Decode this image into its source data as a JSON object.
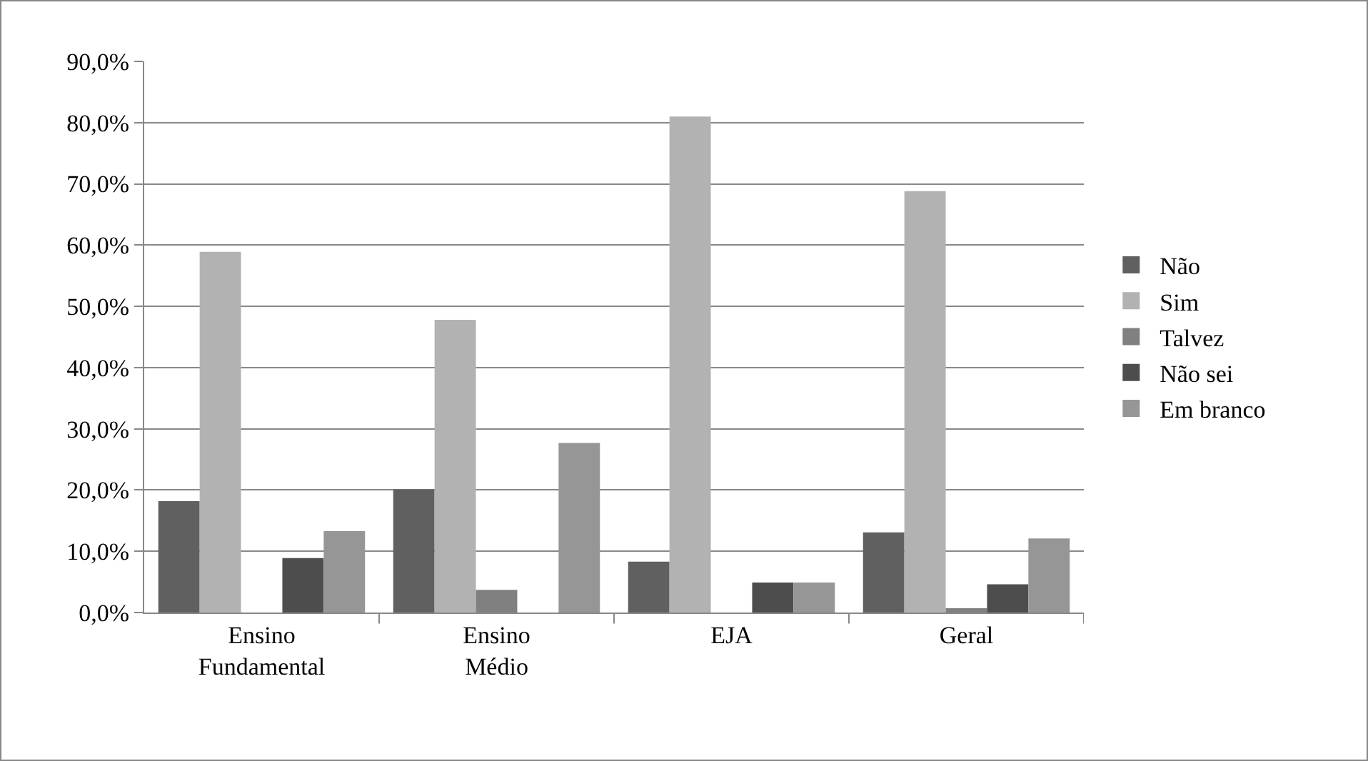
{
  "chart_data": {
    "type": "bar",
    "categories": [
      "Ensino Fundamental",
      "Ensino Médio",
      "EJA",
      "Geral"
    ],
    "series": [
      {
        "name": "Não",
        "color": "#606060",
        "values": [
          18.2,
          20.1,
          8.3,
          13.1
        ]
      },
      {
        "name": "Sim",
        "color": "#b2b2b2",
        "values": [
          58.9,
          47.8,
          81.0,
          68.8
        ]
      },
      {
        "name": "Talvez",
        "color": "#808080",
        "values": [
          0,
          3.7,
          0,
          0.7
        ]
      },
      {
        "name": "Não sei",
        "color": "#4d4d4d",
        "values": [
          8.9,
          0,
          4.9,
          4.6
        ]
      },
      {
        "name": "Em branco",
        "color": "#969696",
        "values": [
          13.3,
          27.7,
          4.9,
          12.1
        ]
      }
    ],
    "ylim": [
      0,
      90
    ],
    "yticks": [
      {
        "value": 0,
        "label": "0,0%"
      },
      {
        "value": 10,
        "label": "10,0%"
      },
      {
        "value": 20,
        "label": "20,0%"
      },
      {
        "value": 30,
        "label": "30,0%"
      },
      {
        "value": 40,
        "label": "40,0%"
      },
      {
        "value": 50,
        "label": "50,0%"
      },
      {
        "value": 60,
        "label": "60,0%"
      },
      {
        "value": 70,
        "label": "70,0%"
      },
      {
        "value": 80,
        "label": "80,0%"
      },
      {
        "value": 90,
        "label": "90,0%"
      }
    ],
    "grid": "y",
    "legend": "right"
  }
}
